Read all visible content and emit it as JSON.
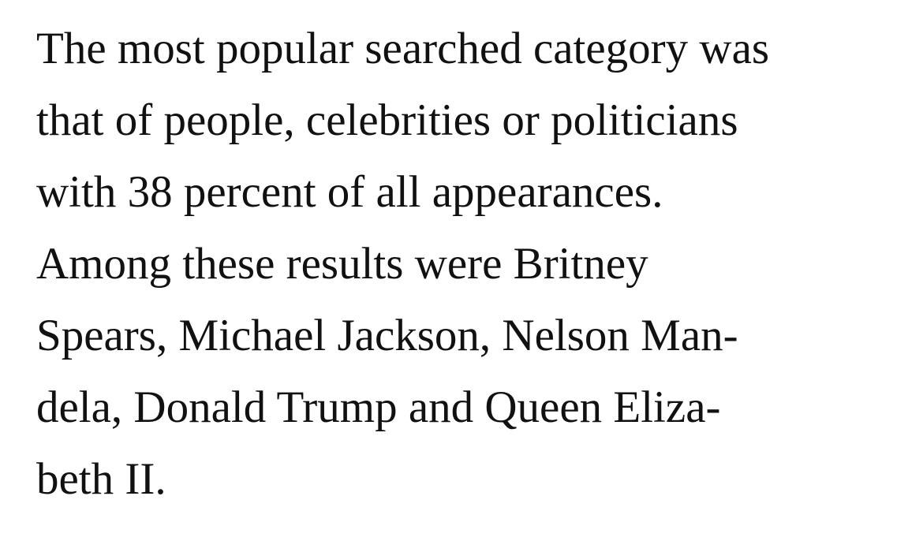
{
  "paragraph": {
    "lines": [
      "The most popular searched category was",
      "that of people, celebrities or politicians",
      "with 38 percent of all appearances.",
      "Among these results were Britney",
      "Spears, Michael Jackson, Nelson Man-",
      "dela, Donald Trump and Queen Eliza-",
      "beth II."
    ]
  }
}
